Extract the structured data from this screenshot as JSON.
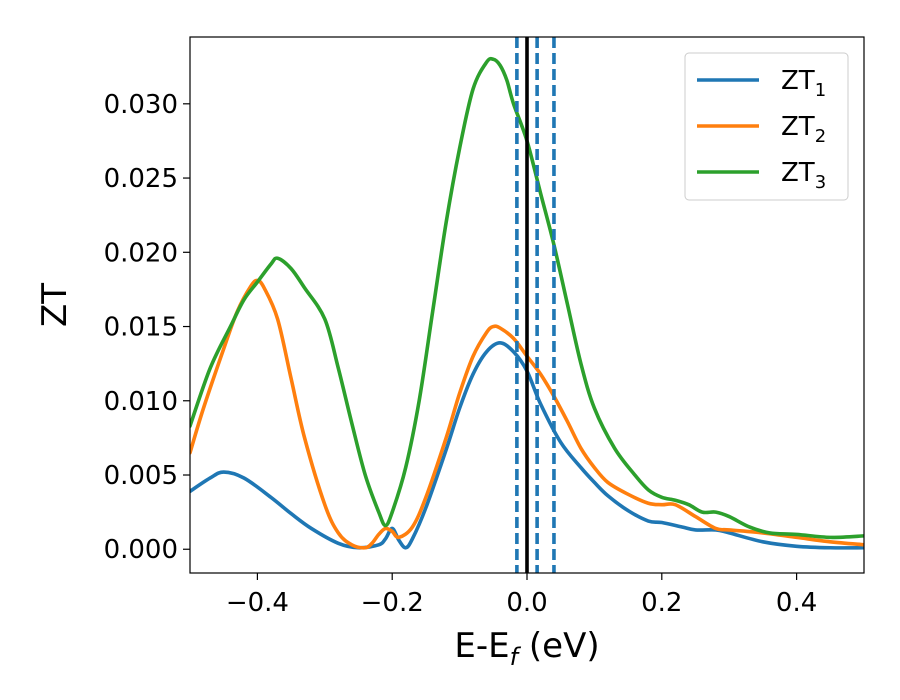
{
  "chart_data": {
    "type": "line",
    "title": "",
    "xlabel": "E-E",
    "xlabel_sub": "f",
    "xlabel_unit": " (eV)",
    "ylabel": "ZT",
    "xlim": [
      -0.5,
      0.5
    ],
    "ylim": [
      -0.0016,
      0.0345
    ],
    "xticks": [
      -0.4,
      -0.2,
      0.0,
      0.2,
      0.4
    ],
    "xtick_labels": [
      "−0.4",
      "−0.2",
      "0.0",
      "0.2",
      "0.4"
    ],
    "yticks": [
      0.0,
      0.005,
      0.01,
      0.015,
      0.02,
      0.025,
      0.03
    ],
    "ytick_labels": [
      "0.000",
      "0.005",
      "0.010",
      "0.015",
      "0.020",
      "0.025",
      "0.030"
    ],
    "grid": false,
    "legend_position": "top-right",
    "vlines": [
      {
        "x": 0.0,
        "style": "solid",
        "color": "#000000"
      },
      {
        "x": -0.015,
        "style": "dashed",
        "color": "#1f77b4"
      },
      {
        "x": 0.015,
        "style": "dashed",
        "color": "#1f77b4"
      },
      {
        "x": 0.04,
        "style": "dashed",
        "color": "#1f77b4"
      }
    ],
    "series": [
      {
        "name": "ZT",
        "name_sub": "1",
        "color": "#1f77b4",
        "x": [
          -0.5,
          -0.47,
          -0.45,
          -0.42,
          -0.38,
          -0.35,
          -0.32,
          -0.28,
          -0.25,
          -0.22,
          -0.21,
          -0.2,
          -0.19,
          -0.18,
          -0.17,
          -0.15,
          -0.12,
          -0.1,
          -0.08,
          -0.06,
          -0.04,
          -0.02,
          0.0,
          0.02,
          0.05,
          0.08,
          0.1,
          0.12,
          0.15,
          0.18,
          0.2,
          0.23,
          0.25,
          0.28,
          0.3,
          0.35,
          0.4,
          0.45,
          0.5
        ],
        "y": [
          0.0039,
          0.0048,
          0.0052,
          0.0048,
          0.0035,
          0.0024,
          0.0014,
          0.0004,
          0.0001,
          0.0003,
          0.0007,
          0.0014,
          0.0006,
          0.0001,
          0.0007,
          0.0028,
          0.0067,
          0.0095,
          0.0118,
          0.0133,
          0.0139,
          0.0133,
          0.012,
          0.0098,
          0.0072,
          0.0055,
          0.0045,
          0.0036,
          0.0026,
          0.0019,
          0.0018,
          0.0015,
          0.0013,
          0.0013,
          0.0011,
          0.0005,
          0.0002,
          0.0001,
          0.0001
        ]
      },
      {
        "name": "ZT",
        "name_sub": "2",
        "color": "#ff7f0e",
        "x": [
          -0.5,
          -0.48,
          -0.45,
          -0.43,
          -0.41,
          -0.4,
          -0.39,
          -0.37,
          -0.35,
          -0.33,
          -0.3,
          -0.28,
          -0.26,
          -0.24,
          -0.23,
          -0.22,
          -0.21,
          -0.2,
          -0.19,
          -0.17,
          -0.15,
          -0.12,
          -0.1,
          -0.08,
          -0.06,
          -0.05,
          -0.04,
          -0.02,
          0.0,
          0.02,
          0.04,
          0.06,
          0.08,
          0.1,
          0.12,
          0.15,
          0.18,
          0.2,
          0.22,
          0.25,
          0.28,
          0.3,
          0.35,
          0.4,
          0.45,
          0.5
        ],
        "y": [
          0.0065,
          0.0095,
          0.0135,
          0.016,
          0.0177,
          0.0181,
          0.0176,
          0.0155,
          0.0115,
          0.0075,
          0.003,
          0.0011,
          0.0003,
          0.0001,
          0.0004,
          0.001,
          0.0014,
          0.0012,
          0.0008,
          0.0015,
          0.0035,
          0.0075,
          0.0105,
          0.013,
          0.0146,
          0.015,
          0.0149,
          0.0142,
          0.013,
          0.0118,
          0.0103,
          0.0086,
          0.0068,
          0.0055,
          0.0045,
          0.0037,
          0.0031,
          0.003,
          0.003,
          0.0022,
          0.0014,
          0.0013,
          0.0011,
          0.0008,
          0.0005,
          0.0003
        ]
      },
      {
        "name": "ZT",
        "name_sub": "3",
        "color": "#2ca02c",
        "x": [
          -0.5,
          -0.47,
          -0.44,
          -0.42,
          -0.4,
          -0.38,
          -0.37,
          -0.35,
          -0.33,
          -0.3,
          -0.28,
          -0.26,
          -0.24,
          -0.22,
          -0.21,
          -0.2,
          -0.18,
          -0.16,
          -0.14,
          -0.12,
          -0.1,
          -0.08,
          -0.06,
          -0.05,
          -0.04,
          -0.03,
          -0.02,
          0.0,
          0.02,
          0.04,
          0.06,
          0.08,
          0.1,
          0.13,
          0.16,
          0.18,
          0.2,
          0.22,
          0.24,
          0.26,
          0.28,
          0.3,
          0.33,
          0.36,
          0.4,
          0.45,
          0.5
        ],
        "y": [
          0.0083,
          0.0122,
          0.015,
          0.0168,
          0.018,
          0.0192,
          0.0196,
          0.0189,
          0.0176,
          0.0155,
          0.0122,
          0.0085,
          0.005,
          0.0025,
          0.0016,
          0.0025,
          0.0055,
          0.01,
          0.016,
          0.022,
          0.027,
          0.031,
          0.0328,
          0.033,
          0.0326,
          0.0316,
          0.03,
          0.0275,
          0.024,
          0.0205,
          0.0165,
          0.0125,
          0.0095,
          0.0068,
          0.005,
          0.004,
          0.0035,
          0.0033,
          0.003,
          0.0025,
          0.0025,
          0.0022,
          0.0015,
          0.0011,
          0.001,
          0.0008,
          0.0009
        ]
      }
    ]
  }
}
